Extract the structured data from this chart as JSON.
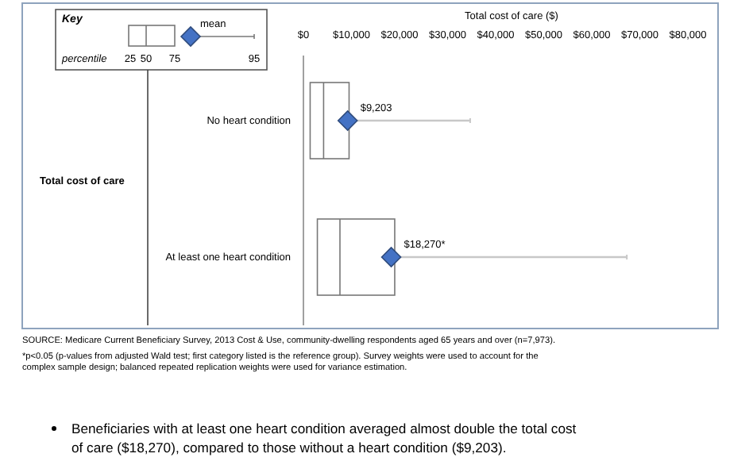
{
  "chart_data": {
    "type": "box",
    "orientation": "horizontal",
    "legend_title": "Key",
    "xlabel": "Total cost of care ($)",
    "ylabel": "Total cost of care",
    "categories": [
      "No heart condition",
      "At least one heart condition"
    ],
    "boxes": [
      {
        "q1": 1400,
        "median": 4200,
        "q3": 9500,
        "high": 34700
      },
      {
        "q1": 2900,
        "median": 7600,
        "q3": 19000,
        "high": 67300
      }
    ],
    "color": "#ffffff",
    "grid": false,
    "series": [
      {
        "type": "scatter",
        "name": "mean",
        "color": "#4472c4",
        "marker": "diamond",
        "x": [
          "No heart condition",
          "At least one heart condition"
        ],
        "values": [
          9203,
          18270
        ]
      }
    ],
    "xlim": [
      0,
      80000
    ],
    "xticks": [
      {
        "value": 0,
        "label": "$0"
      },
      {
        "value": 10000,
        "label": "$10,000"
      },
      {
        "value": 20000,
        "label": "$20,000"
      },
      {
        "value": 30000,
        "label": "$30,000"
      },
      {
        "value": 40000,
        "label": "$40,000"
      },
      {
        "value": 50000,
        "label": "$50,000"
      },
      {
        "value": 60000,
        "label": "$60,000"
      },
      {
        "value": 70000,
        "label": "$70,000"
      },
      {
        "value": 80000,
        "label": "$80,000"
      }
    ],
    "annotations": [
      "percentile",
      "25",
      "50",
      "75",
      "95",
      {
        "text": "$9,203",
        "x": 9203,
        "y": "No heart condition"
      },
      {
        "text": "$18,270*",
        "x": 18270,
        "y": "At least one heart condition"
      },
      "SOURCE: Medicare Current Beneficiary Survey, 2013 Cost & Use, community-dwelling respondents aged 65 years and over (n=7,973).",
      "*p<0.05 (p-values from adjusted Wald test; first category listed is the reference group). Survey weights were used to account for the complex sample design; balanced repeated replication weights were used for variance estimation.",
      "Beneficiaries with at least one heart condition averaged almost double the total cost of care ($18,270), compared to those without a heart condition ($9,203)."
    ]
  }
}
